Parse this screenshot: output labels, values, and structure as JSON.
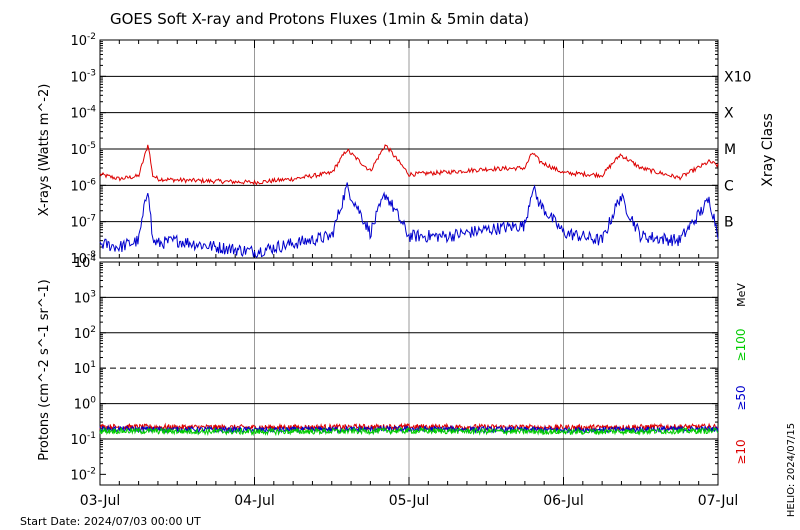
{
  "title": "GOES Soft X-ray and Protons Fluxes   (1min & 5min data)",
  "start_date": "Start Date: 2024/07/03 00:00 UT",
  "stamp": "HELIO: 2024/07/15",
  "colors": {
    "xray_long": "#dd0000",
    "xray_short": "#0000cc",
    "p10": "#dd0000",
    "p50": "#0000cc",
    "p100": "#00cc00",
    "grid": "#000000",
    "day_line": "#999999"
  },
  "chart_data": [
    {
      "type": "line",
      "title": "GOES Soft X-ray and Protons Fluxes   (1min & 5min data)",
      "ylabel": "X-rays (Watts m^-2)",
      "y_scale": "log",
      "ylim": [
        1e-08,
        0.01
      ],
      "xlim": [
        "2024-07-03",
        "2024-07-07"
      ],
      "x_ticks": [
        "03-Jul",
        "04-Jul",
        "05-Jul",
        "06-Jul",
        "07-Jul"
      ],
      "y_ticks": [
        "10^-8",
        "10^-7",
        "10^-6",
        "10^-5",
        "10^-4",
        "10^-3",
        "10^-2"
      ],
      "right_axis_label": "Xray Class",
      "class_labels": [
        "B",
        "C",
        "M",
        "X",
        "X10"
      ],
      "grid": true,
      "series": [
        {
          "color": "#dd0000",
          "x": [
            "07-03 00:00",
            "07-03 03:00",
            "07-03 06:00",
            "07-03 07:30",
            "07-03 08:10",
            "07-03 09:00",
            "07-03 12:00",
            "07-03 18:00",
            "07-04 00:00",
            "07-04 06:00",
            "07-04 12:00",
            "07-04 14:20",
            "07-04 18:00",
            "07-04 20:20",
            "07-05 00:00",
            "07-05 06:00",
            "07-05 12:00",
            "07-05 18:00",
            "07-05 19:10",
            "07-05 20:20",
            "07-06 00:00",
            "07-06 06:00",
            "07-06 08:50",
            "07-06 12:00",
            "07-06 18:00",
            "07-06 22:40",
            "07-07 00:00"
          ],
          "y": [
            2e-06,
            1.5e-06,
            1.8e-06,
            1.4e-05,
            1.9e-06,
            1.5e-06,
            1.4e-06,
            1.3e-06,
            1.2e-06,
            1.5e-06,
            2.2e-06,
            9.5e-06,
            2.5e-06,
            1.3e-05,
            2e-06,
            2.3e-06,
            2.8e-06,
            3e-06,
            8e-06,
            4.5e-06,
            2.2e-06,
            1.9e-06,
            7e-06,
            3e-06,
            1.6e-06,
            4.5e-06,
            3.5e-06
          ]
        },
        {
          "color": "#0000cc",
          "x": [
            "07-03 00:00",
            "07-03 03:00",
            "07-03 06:00",
            "07-03 07:30",
            "07-03 08:10",
            "07-03 09:00",
            "07-03 12:00",
            "07-03 18:00",
            "07-04 00:00",
            "07-04 06:00",
            "07-04 12:00",
            "07-04 14:20",
            "07-04 18:00",
            "07-04 20:20",
            "07-05 00:00",
            "07-05 06:00",
            "07-05 12:00",
            "07-05 18:00",
            "07-05 19:10",
            "07-05 20:20",
            "07-06 00:00",
            "07-06 06:00",
            "07-06 08:50",
            "07-06 12:00",
            "07-06 18:00",
            "07-06 22:40",
            "07-07 00:00"
          ],
          "y": [
            2.5e-08,
            2e-08,
            3e-08,
            1e-06,
            3e-08,
            2.5e-08,
            3e-08,
            2e-08,
            1.5e-08,
            2.5e-08,
            4e-08,
            9e-07,
            5e-08,
            6e-07,
            4e-08,
            4e-08,
            6e-08,
            8e-08,
            9e-07,
            3e-07,
            5e-08,
            3e-08,
            5e-07,
            4e-08,
            3e-08,
            4e-07,
            5e-08
          ]
        }
      ]
    },
    {
      "type": "line",
      "ylabel": "Protons (cm^-2 s^-1 sr^-1)",
      "y_scale": "log",
      "ylim": [
        0.005,
        10000
      ],
      "xlim": [
        "2024-07-03",
        "2024-07-07"
      ],
      "x_ticks": [
        "03-Jul",
        "04-Jul",
        "05-Jul",
        "06-Jul",
        "07-Jul"
      ],
      "y_ticks": [
        "10^-2",
        "10^-1",
        "10^0",
        "10^1",
        "10^2",
        "10^3",
        "10^4"
      ],
      "threshold": 10,
      "energy_unit": "MeV",
      "grid": true,
      "series": [
        {
          "name": "≥10",
          "color": "#dd0000",
          "x": [
            "07-03",
            "07-04",
            "07-05",
            "07-06",
            "07-07"
          ],
          "y": [
            0.22,
            0.21,
            0.22,
            0.21,
            0.22
          ]
        },
        {
          "name": "≥50",
          "color": "#0000cc",
          "x": [
            "07-03",
            "07-04",
            "07-05",
            "07-06",
            "07-07"
          ],
          "y": [
            0.19,
            0.18,
            0.19,
            0.18,
            0.19
          ]
        },
        {
          "name": "≥100",
          "color": "#00cc00",
          "x": [
            "07-03",
            "07-04",
            "07-05",
            "07-06",
            "07-07"
          ],
          "y": [
            0.17,
            0.16,
            0.17,
            0.16,
            0.17
          ]
        }
      ]
    }
  ]
}
